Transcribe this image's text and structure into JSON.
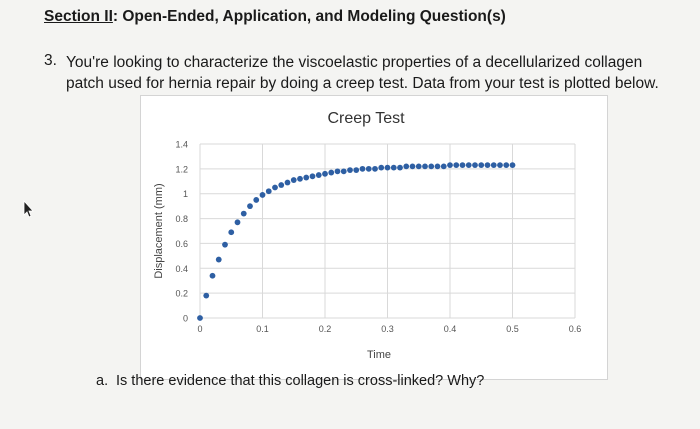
{
  "section": {
    "prefix": "Section II",
    "rest": ": Open-Ended, Application, and Modeling Question(s)"
  },
  "question": {
    "number": "3.",
    "text": "You're looking to characterize the viscoelastic properties of a decellularized collagen patch used for hernia repair by doing a creep test. Data from your test is plotted below."
  },
  "chart_data": {
    "type": "scatter",
    "title": "Creep Test",
    "xlabel": "Time",
    "ylabel": "Displacement (mm)",
    "xlim": [
      0,
      0.6
    ],
    "ylim": [
      0,
      1.4
    ],
    "x_ticks": [
      "0",
      "0.1",
      "0.2",
      "0.3",
      "0.4",
      "0.5",
      "0.6"
    ],
    "y_ticks": [
      "0",
      "0.2",
      "0.4",
      "0.6",
      "0.8",
      "1",
      "1.2",
      "1.4"
    ],
    "grid": true,
    "marker_color": "#2e5fa3",
    "series": [
      {
        "x": [
          0,
          0.01,
          0.02,
          0.03,
          0.04,
          0.05,
          0.06,
          0.07,
          0.08,
          0.09,
          0.1,
          0.11,
          0.12,
          0.13,
          0.14,
          0.15,
          0.16,
          0.17,
          0.18,
          0.19,
          0.2,
          0.21,
          0.22,
          0.23,
          0.24,
          0.25,
          0.26,
          0.27,
          0.28,
          0.29,
          0.3,
          0.31,
          0.32,
          0.33,
          0.34,
          0.35,
          0.36,
          0.37,
          0.38,
          0.39,
          0.4,
          0.41,
          0.42,
          0.43,
          0.44,
          0.45,
          0.46,
          0.47,
          0.48,
          0.49,
          0.5
        ],
        "y": [
          0,
          0.18,
          0.34,
          0.47,
          0.59,
          0.69,
          0.77,
          0.84,
          0.9,
          0.95,
          0.99,
          1.02,
          1.05,
          1.07,
          1.09,
          1.11,
          1.12,
          1.13,
          1.14,
          1.15,
          1.16,
          1.17,
          1.18,
          1.18,
          1.19,
          1.19,
          1.2,
          1.2,
          1.2,
          1.21,
          1.21,
          1.21,
          1.21,
          1.22,
          1.22,
          1.22,
          1.22,
          1.22,
          1.22,
          1.22,
          1.23,
          1.23,
          1.23,
          1.23,
          1.23,
          1.23,
          1.23,
          1.23,
          1.23,
          1.23,
          1.23
        ]
      }
    ]
  },
  "sub_question": {
    "letter": "a.",
    "text": "Is there evidence that this collagen is cross-linked? Why?"
  }
}
